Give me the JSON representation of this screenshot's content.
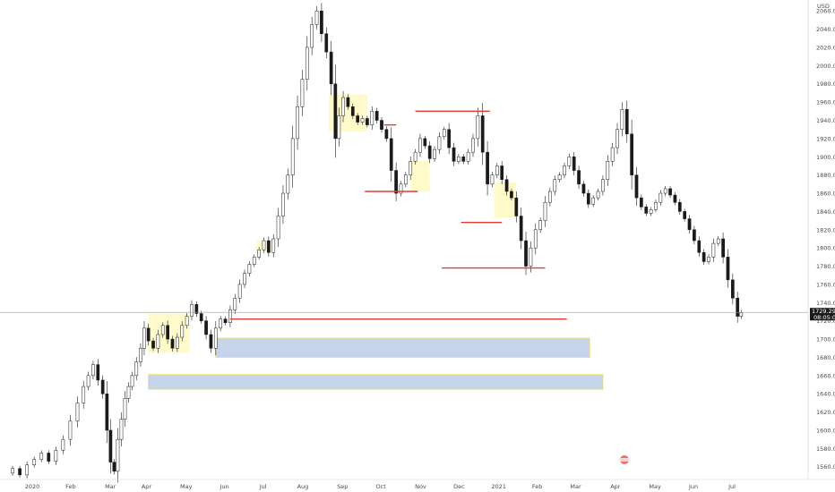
{
  "chart_data": {
    "type": "candlestick",
    "title": "",
    "ylabel": "USD",
    "ylim": [
      1546,
      2072
    ],
    "xlim": [
      0,
      62
    ],
    "y_ticks": [
      "2060.000",
      "2040.000",
      "2020.000",
      "2000.000",
      "1980.000",
      "1960.000",
      "1940.000",
      "1920.000",
      "1900.000",
      "1880.000",
      "1860.000",
      "1840.000",
      "1820.000",
      "1800.000",
      "1780.000",
      "1760.000",
      "1740.000",
      "1720.000",
      "1700.000",
      "1680.000",
      "1660.000",
      "1640.000",
      "1620.000",
      "1600.000",
      "1580.000",
      "1560.000"
    ],
    "x_ticks": [
      {
        "label": "2020",
        "x": 0
      },
      {
        "label": "Feb",
        "x": 3.2
      },
      {
        "label": "Mar",
        "x": 6.5
      },
      {
        "label": "Apr",
        "x": 9.5
      },
      {
        "label": "May",
        "x": 12.8
      },
      {
        "label": "Jun",
        "x": 16.0
      },
      {
        "label": "Jul",
        "x": 19.2
      },
      {
        "label": "Aug",
        "x": 22.5
      },
      {
        "label": "Sep",
        "x": 25.8
      },
      {
        "label": "Oct",
        "x": 29.0
      },
      {
        "label": "Nov",
        "x": 32.3
      },
      {
        "label": "Dec",
        "x": 35.5
      },
      {
        "label": "2021",
        "x": 38.8
      },
      {
        "label": "Feb",
        "x": 42.0
      },
      {
        "label": "Mar",
        "x": 45.2
      },
      {
        "label": "Apr",
        "x": 48.5
      },
      {
        "label": "May",
        "x": 51.8
      },
      {
        "label": "Jun",
        "x": 55.0
      },
      {
        "label": "Jul",
        "x": 58.2
      }
    ],
    "current_price": {
      "label": "1729.295",
      "countdown": "08:05:09",
      "value": 1729.3
    },
    "price_path": [
      [
        0,
        1553
      ],
      [
        0.6,
        1558
      ],
      [
        1.2,
        1551
      ],
      [
        1.8,
        1562
      ],
      [
        2.4,
        1568
      ],
      [
        3.0,
        1575
      ],
      [
        3.6,
        1566
      ],
      [
        4.2,
        1578
      ],
      [
        4.8,
        1590
      ],
      [
        5.4,
        1610
      ],
      [
        6.0,
        1630
      ],
      [
        6.4,
        1648
      ],
      [
        6.8,
        1660
      ],
      [
        7.2,
        1672
      ],
      [
        7.6,
        1655
      ],
      [
        8.0,
        1640
      ],
      [
        8.3,
        1600
      ],
      [
        8.6,
        1565
      ],
      [
        8.9,
        1555
      ],
      [
        9.2,
        1590
      ],
      [
        9.5,
        1612
      ],
      [
        9.8,
        1635
      ],
      [
        10.1,
        1648
      ],
      [
        10.4,
        1660
      ],
      [
        10.8,
        1675
      ],
      [
        11.1,
        1690
      ],
      [
        11.4,
        1712
      ],
      [
        11.8,
        1698
      ],
      [
        12.2,
        1690
      ],
      [
        12.6,
        1705
      ],
      [
        13.0,
        1715
      ],
      [
        13.4,
        1700
      ],
      [
        13.8,
        1690
      ],
      [
        14.2,
        1702
      ],
      [
        14.6,
        1715
      ],
      [
        15.0,
        1725
      ],
      [
        15.4,
        1738
      ],
      [
        15.8,
        1728
      ],
      [
        16.2,
        1720
      ],
      [
        16.6,
        1705
      ],
      [
        17.0,
        1690
      ],
      [
        17.4,
        1712
      ],
      [
        17.8,
        1722
      ],
      [
        18.2,
        1718
      ],
      [
        18.6,
        1732
      ],
      [
        19.0,
        1745
      ],
      [
        19.4,
        1760
      ],
      [
        19.8,
        1772
      ],
      [
        20.2,
        1782
      ],
      [
        20.6,
        1790
      ],
      [
        21.0,
        1798
      ],
      [
        21.4,
        1808
      ],
      [
        21.8,
        1795
      ],
      [
        22.2,
        1810
      ],
      [
        22.6,
        1835
      ],
      [
        23.0,
        1860
      ],
      [
        23.4,
        1880
      ],
      [
        23.8,
        1920
      ],
      [
        24.2,
        1955
      ],
      [
        24.6,
        1985
      ],
      [
        25.0,
        2020
      ],
      [
        25.4,
        2045
      ],
      [
        25.8,
        2060
      ],
      [
        26.2,
        2035
      ],
      [
        26.6,
        2015
      ],
      [
        27.0,
        1980
      ],
      [
        27.3,
        1920
      ],
      [
        27.6,
        1945
      ],
      [
        28.0,
        1965
      ],
      [
        28.4,
        1955
      ],
      [
        28.8,
        1945
      ],
      [
        29.2,
        1938
      ],
      [
        29.6,
        1942
      ],
      [
        30.0,
        1935
      ],
      [
        30.4,
        1950
      ],
      [
        30.8,
        1940
      ],
      [
        31.2,
        1930
      ],
      [
        31.6,
        1920
      ],
      [
        32.0,
        1885
      ],
      [
        32.4,
        1860
      ],
      [
        32.8,
        1870
      ],
      [
        33.2,
        1880
      ],
      [
        33.6,
        1895
      ],
      [
        34.0,
        1905
      ],
      [
        34.4,
        1920
      ],
      [
        34.8,
        1912
      ],
      [
        35.2,
        1898
      ],
      [
        35.6,
        1908
      ],
      [
        36.0,
        1922
      ],
      [
        36.4,
        1930
      ],
      [
        36.8,
        1910
      ],
      [
        37.2,
        1895
      ],
      [
        37.6,
        1900
      ],
      [
        38.0,
        1895
      ],
      [
        38.4,
        1905
      ],
      [
        38.8,
        1920
      ],
      [
        39.2,
        1945
      ],
      [
        39.6,
        1905
      ],
      [
        40.0,
        1870
      ],
      [
        40.4,
        1880
      ],
      [
        40.8,
        1890
      ],
      [
        41.2,
        1875
      ],
      [
        41.6,
        1862
      ],
      [
        42.0,
        1855
      ],
      [
        42.4,
        1835
      ],
      [
        42.8,
        1808
      ],
      [
        43.2,
        1780
      ],
      [
        43.6,
        1800
      ],
      [
        44.0,
        1820
      ],
      [
        44.4,
        1830
      ],
      [
        44.8,
        1850
      ],
      [
        45.2,
        1862
      ],
      [
        45.6,
        1875
      ],
      [
        46.0,
        1880
      ],
      [
        46.4,
        1890
      ],
      [
        46.8,
        1900
      ],
      [
        47.2,
        1885
      ],
      [
        47.6,
        1870
      ],
      [
        48.0,
        1860
      ],
      [
        48.4,
        1848
      ],
      [
        48.8,
        1855
      ],
      [
        49.2,
        1862
      ],
      [
        49.6,
        1875
      ],
      [
        50.0,
        1895
      ],
      [
        50.4,
        1910
      ],
      [
        50.8,
        1930
      ],
      [
        51.2,
        1952
      ],
      [
        51.6,
        1925
      ],
      [
        52.0,
        1880
      ],
      [
        52.4,
        1855
      ],
      [
        52.8,
        1845
      ],
      [
        53.2,
        1838
      ],
      [
        53.6,
        1842
      ],
      [
        54.0,
        1850
      ],
      [
        54.4,
        1860
      ],
      [
        54.8,
        1865
      ],
      [
        55.2,
        1858
      ],
      [
        55.6,
        1850
      ],
      [
        56.0,
        1840
      ],
      [
        56.4,
        1832
      ],
      [
        56.8,
        1820
      ],
      [
        57.2,
        1808
      ],
      [
        57.6,
        1795
      ],
      [
        58.0,
        1785
      ],
      [
        58.4,
        1790
      ],
      [
        58.8,
        1805
      ],
      [
        59.2,
        1810
      ],
      [
        59.6,
        1790
      ],
      [
        60.0,
        1765
      ],
      [
        60.4,
        1745
      ],
      [
        60.8,
        1725
      ],
      [
        61.0,
        1729
      ]
    ],
    "highlight_zones": [
      {
        "x": [
          11.6,
          15.0
        ],
        "y": [
          1685,
          1728
        ],
        "color": "#fff59d"
      },
      {
        "x": [
          20.6,
          21.8
        ],
        "y": [
          1795,
          1808
        ],
        "color": "#fff59d"
      },
      {
        "x": [
          26.6,
          29.8
        ],
        "y": [
          1928,
          1968
        ],
        "color": "#fff59d"
      },
      {
        "x": [
          33.4,
          35.0
        ],
        "y": [
          1862,
          1896
        ],
        "color": "#fff59d"
      },
      {
        "x": [
          40.4,
          42.2
        ],
        "y": [
          1833,
          1872
        ],
        "color": "#fff59d"
      }
    ],
    "demand_zones": [
      {
        "x": [
          17.2,
          48.3
        ],
        "y": [
          1680,
          1701
        ],
        "color": "#c5d4ea"
      },
      {
        "x": [
          11.6,
          49.4
        ],
        "y": [
          1645,
          1661
        ],
        "color": "#c5d4ea"
      }
    ],
    "level_lines": [
      {
        "x": [
          18.4,
          46.4
        ],
        "y": 1722,
        "color": "#e53935"
      },
      {
        "x": [
          33.8,
          40.0
        ],
        "y": 1950,
        "color": "#e53935"
      },
      {
        "x": [
          29.6,
          34.0
        ],
        "y": 1862,
        "color": "#e53935"
      },
      {
        "x": [
          31.2,
          32.2
        ],
        "y": 1935,
        "color": "#e53935"
      },
      {
        "x": [
          36.0,
          44.6
        ],
        "y": 1778,
        "color": "#e53935"
      },
      {
        "x": [
          37.6,
          41.0
        ],
        "y": 1828,
        "color": "#e53935"
      }
    ],
    "axis_label": "USD",
    "grid": false,
    "legend": "none"
  }
}
